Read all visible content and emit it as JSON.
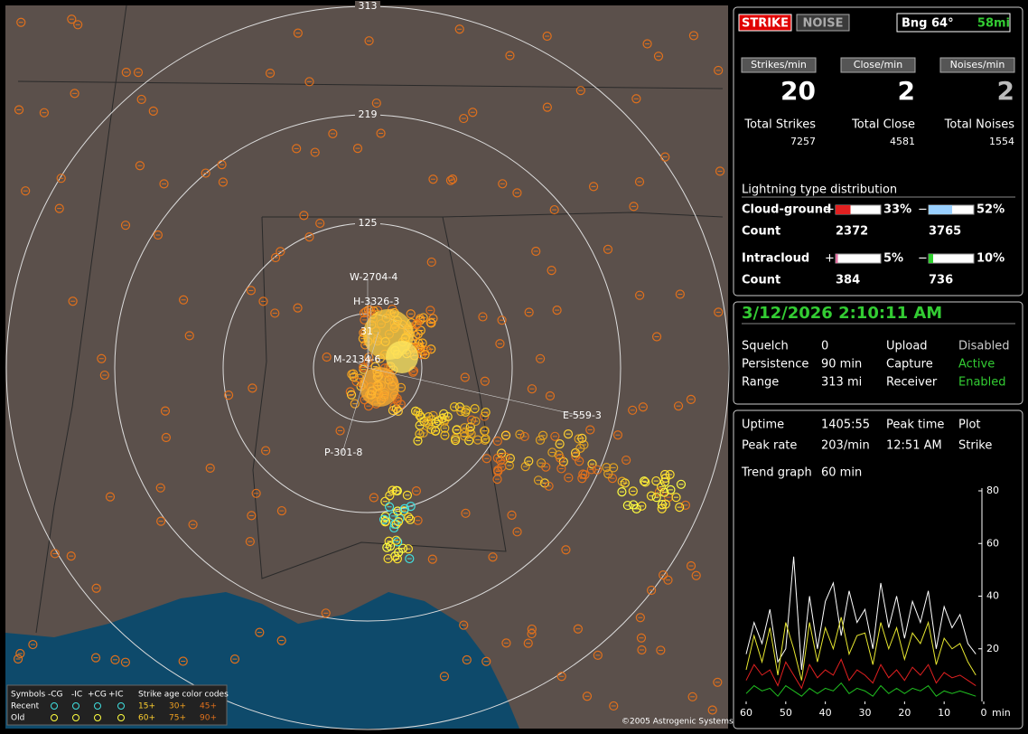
{
  "map": {
    "rings": [
      "313",
      "219",
      "125"
    ],
    "markers": [
      "W-2704-4",
      "H-3326-3",
      "31",
      "M-2134-6",
      "P-301-8",
      "E-559-3"
    ],
    "legend": {
      "header": [
        "Symbols",
        "-CG",
        "-IC",
        "+CG",
        "+IC",
        "Strike age color codes"
      ],
      "rows": [
        {
          "label": "Recent",
          "ages": [
            "15+",
            "30+",
            "45+"
          ]
        },
        {
          "label": "Old",
          "ages": [
            "60+",
            "75+",
            "90+"
          ]
        }
      ]
    },
    "copyright": "©2005 Astrogenic Systems"
  },
  "header": {
    "strike": "STRIKE",
    "noise": "NOISE",
    "bearing": "Bng 64°",
    "distance": "58mi"
  },
  "rates": [
    {
      "label": "Strikes/min",
      "value": 20,
      "total_label": "Total Strikes",
      "total": 7257
    },
    {
      "label": "Close/min",
      "value": 2,
      "total_label": "Total Close",
      "total": 4581
    },
    {
      "label": "Noises/min",
      "value": 2,
      "total_label": "Total Noises",
      "total": 1554
    }
  ],
  "distribution": {
    "title": "Lightning type distribution",
    "count_label": "Count",
    "rows": [
      {
        "name": "Cloud-ground",
        "pos": {
          "sign": "+",
          "value": 33,
          "value_label": "33%",
          "count": 2372
        },
        "neg": {
          "sign": "−",
          "value": 52,
          "value_label": "52%",
          "count": 3765
        }
      },
      {
        "name": "Intracloud",
        "pos": {
          "sign": "+",
          "value": 5,
          "value_label": "5%",
          "count": 384
        },
        "neg": {
          "sign": "−",
          "value": 10,
          "value_label": "10%",
          "count": 736
        }
      }
    ]
  },
  "status": {
    "date": "3/12/2026 2:10:11 AM",
    "rows": [
      [
        "Squelch",
        "0",
        "Upload",
        "Disabled"
      ],
      [
        "Persistence",
        "90 min",
        "Capture",
        "Active"
      ],
      [
        "Range",
        "313 mi",
        "Receiver",
        "Enabled"
      ]
    ]
  },
  "stats": {
    "rows": [
      [
        "Uptime",
        "1405:55",
        "Peak time",
        "Plot"
      ],
      [
        "Peak rate",
        "203/min",
        "12:51 AM",
        "Strike"
      ]
    ],
    "trend": [
      "Trend graph",
      "60 min"
    ]
  },
  "chart_data": {
    "type": "line",
    "x_label": "min",
    "xlim": [
      60,
      0
    ],
    "xticks": [
      60,
      50,
      40,
      30,
      20,
      10,
      0
    ],
    "ylim": [
      0,
      80
    ],
    "yticks": [
      20,
      40,
      60,
      80
    ],
    "x": [
      60,
      58,
      56,
      54,
      52,
      50,
      48,
      46,
      44,
      42,
      40,
      38,
      36,
      34,
      32,
      30,
      28,
      26,
      24,
      22,
      20,
      18,
      16,
      14,
      12,
      10,
      8,
      6,
      4,
      2
    ],
    "series": [
      {
        "color": "#ffffff",
        "values": [
          18,
          30,
          22,
          35,
          15,
          20,
          55,
          12,
          40,
          20,
          38,
          45,
          25,
          42,
          30,
          35,
          20,
          45,
          28,
          40,
          24,
          38,
          30,
          42,
          20,
          36,
          28,
          33,
          22,
          18
        ]
      },
      {
        "color": "#e8e830",
        "values": [
          12,
          25,
          15,
          28,
          10,
          30,
          20,
          8,
          30,
          15,
          28,
          20,
          32,
          18,
          25,
          26,
          14,
          30,
          20,
          28,
          16,
          26,
          22,
          30,
          14,
          24,
          20,
          22,
          15,
          10
        ]
      },
      {
        "color": "#e02020",
        "values": [
          8,
          14,
          10,
          12,
          6,
          15,
          10,
          5,
          14,
          9,
          12,
          10,
          16,
          8,
          12,
          10,
          7,
          14,
          9,
          12,
          8,
          13,
          10,
          14,
          7,
          11,
          9,
          10,
          8,
          6
        ]
      },
      {
        "color": "#20c020",
        "values": [
          3,
          6,
          4,
          5,
          2,
          6,
          4,
          2,
          5,
          3,
          5,
          4,
          7,
          3,
          5,
          4,
          2,
          6,
          3,
          5,
          3,
          5,
          4,
          6,
          2,
          4,
          3,
          4,
          3,
          2
        ]
      }
    ]
  }
}
